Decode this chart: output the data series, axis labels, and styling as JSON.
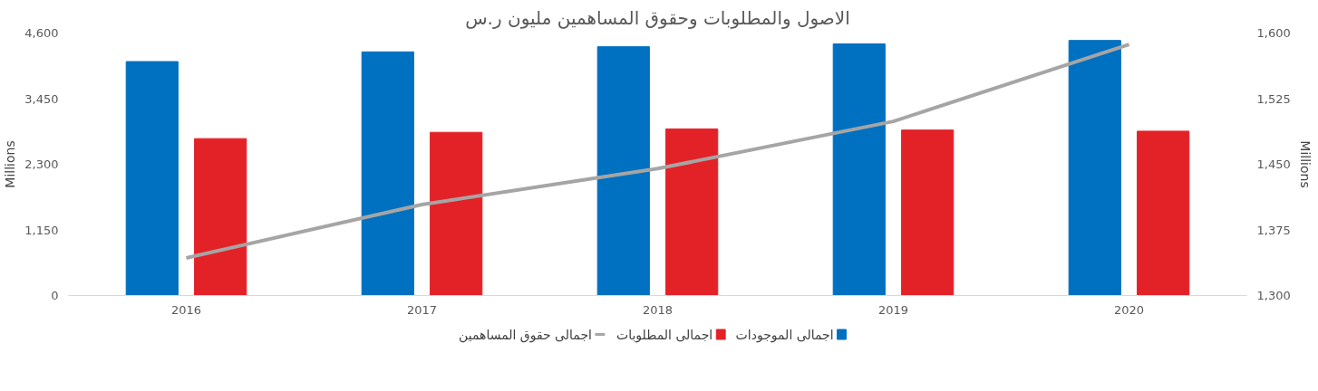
{
  "chart_data": {
    "type": "bar",
    "title": "الاصول والمطلوبات وحقوق المساهمين مليون ر.س",
    "categories": [
      "2016",
      "2017",
      "2018",
      "2019",
      "2020"
    ],
    "series": [
      {
        "name": "اجمالى الموجودات",
        "color": "#0070c0",
        "values": [
          4100,
          4270,
          4360,
          4410,
          4470
        ]
      },
      {
        "name": "اجمالى المطلوبات",
        "color": "#e32227",
        "values": [
          2750,
          2860,
          2920,
          2900,
          2880
        ]
      },
      {
        "name": "اجمالى حقوق المساهمين",
        "type": "line",
        "axis": "y2",
        "color": "#a5a5a5",
        "values": [
          1343,
          1404,
          1445,
          1499,
          1587
        ]
      }
    ],
    "ylabel": "Millions",
    "y2label": "Millions",
    "ylim": [
      0,
      4600
    ],
    "yticks": [
      0,
      {
        "value": 1150,
        "label": "1,150"
      },
      {
        "value": 2300,
        "label": "2,300"
      },
      {
        "value": 3450,
        "label": "3,450"
      },
      {
        "value": 4600,
        "label": "4,600"
      }
    ],
    "y2lim": [
      1300,
      1600
    ],
    "y2ticks": [
      {
        "value": 1300,
        "label": "1,300"
      },
      {
        "value": 1375,
        "label": "1,375"
      },
      {
        "value": 1450,
        "label": "1,450"
      },
      {
        "value": 1525,
        "label": "1,525"
      },
      {
        "value": 1600,
        "label": "1,600"
      }
    ],
    "legend": "bottom",
    "grid": false,
    "marker": "none",
    "line_style": "solid"
  }
}
